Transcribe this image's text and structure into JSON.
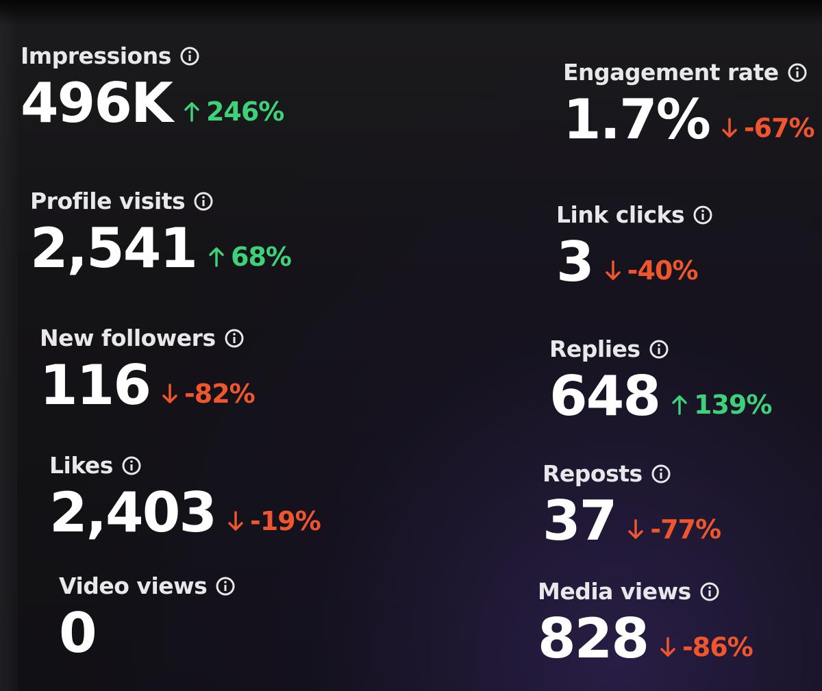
{
  "metrics": {
    "impressions": {
      "label": "Impressions",
      "value": "496K",
      "change": "246%",
      "direction": "up"
    },
    "engagement_rate": {
      "label": "Engagement rate",
      "value": "1.7%",
      "change": "-67%",
      "direction": "down"
    },
    "profile_visits": {
      "label": "Profile visits",
      "value": "2,541",
      "change": "68%",
      "direction": "up"
    },
    "link_clicks": {
      "label": "Link clicks",
      "value": "3",
      "change": "-40%",
      "direction": "down"
    },
    "new_followers": {
      "label": "New followers",
      "value": "116",
      "change": "-82%",
      "direction": "down"
    },
    "replies": {
      "label": "Replies",
      "value": "648",
      "change": "139%",
      "direction": "up"
    },
    "likes": {
      "label": "Likes",
      "value": "2,403",
      "change": "-19%",
      "direction": "down"
    },
    "reposts": {
      "label": "Reposts",
      "value": "37",
      "change": "-77%",
      "direction": "down"
    },
    "video_views": {
      "label": "Video views",
      "value": "0"
    },
    "media_views": {
      "label": "Media views",
      "value": "828",
      "change": "-86%",
      "direction": "down"
    }
  },
  "colors": {
    "positive": "#3fd07a",
    "negative": "#f0562e",
    "label": "#e8e8ea",
    "value": "#ffffff"
  },
  "icons": {
    "info": "info-icon",
    "up": "arrow-up-icon",
    "down": "arrow-down-icon"
  }
}
